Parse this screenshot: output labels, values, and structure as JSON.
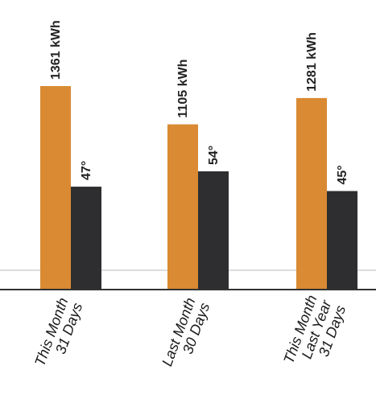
{
  "chart_data": {
    "type": "bar",
    "categories": [
      [
        "This Month",
        "31 Days"
      ],
      [
        "Last Month",
        "30 Days"
      ],
      [
        "This Month",
        "Last Year",
        "31 Days"
      ]
    ],
    "series": [
      {
        "values": [
          1361,
          1105,
          1281
        ],
        "labels": [
          "1361 kWh",
          "1105 kWh",
          "1281 kWh"
        ],
        "color": "#D98A32"
      },
      {
        "values": [
          47,
          54,
          45
        ],
        "labels": [
          "47°",
          "54°",
          "45°"
        ],
        "color": "#2E2E30"
      }
    ],
    "title": "",
    "xlabel": "",
    "ylabel": "",
    "grid": false,
    "legend": "none"
  }
}
